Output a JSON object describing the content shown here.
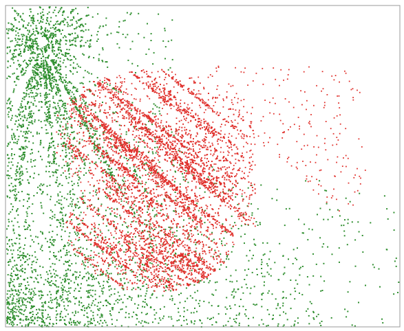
{
  "chart_data": {
    "type": "scatter",
    "title": "",
    "xlabel": "",
    "ylabel": "",
    "legend": "none",
    "grid": false,
    "border": true,
    "colors": {
      "background": "#ffffff",
      "border": "#999999",
      "green": "#2f8f2f",
      "red": "#e0312c"
    },
    "series": [
      {
        "color_key": "green",
        "pattern": "radial-burst-from-top-left-with-diffuse-band",
        "approx_points": 3200
      },
      {
        "color_key": "red",
        "pattern": "dense-diagonal-streaks-in-lobed-shape",
        "approx_points": 3800
      }
    ]
  }
}
